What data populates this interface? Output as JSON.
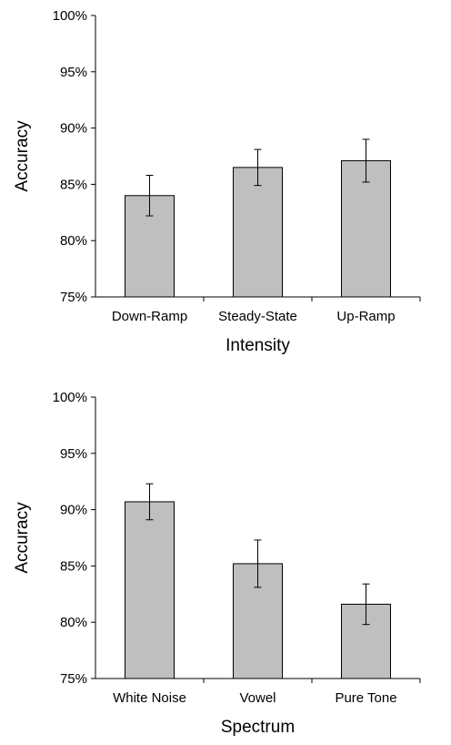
{
  "chart_data": [
    {
      "type": "bar",
      "categories": [
        "Down-Ramp",
        "Steady-State",
        "Up-Ramp"
      ],
      "values": [
        84.0,
        86.5,
        87.1
      ],
      "error_low": [
        82.2,
        84.9,
        85.2
      ],
      "error_high": [
        85.8,
        88.1,
        89.0
      ],
      "xlabel": "Intensity",
      "ylabel": "Accuracy",
      "ylim": [
        75,
        100
      ],
      "yticks": [
        "75%",
        "80%",
        "85%",
        "90%",
        "95%",
        "100%"
      ],
      "ytick_values": [
        75,
        80,
        85,
        90,
        95,
        100
      ],
      "bar_color": "#bfbfbf",
      "grid": false
    },
    {
      "type": "bar",
      "categories": [
        "White Noise",
        "Vowel",
        "Pure Tone"
      ],
      "values": [
        90.7,
        85.2,
        81.6
      ],
      "error_low": [
        89.1,
        83.1,
        79.8
      ],
      "error_high": [
        92.3,
        87.3,
        83.4
      ],
      "xlabel": "Spectrum",
      "ylabel": "Accuracy",
      "ylim": [
        75,
        100
      ],
      "yticks": [
        "75%",
        "80%",
        "85%",
        "90%",
        "95%",
        "100%"
      ],
      "ytick_values": [
        75,
        80,
        85,
        90,
        95,
        100
      ],
      "bar_color": "#bfbfbf",
      "grid": false
    }
  ]
}
